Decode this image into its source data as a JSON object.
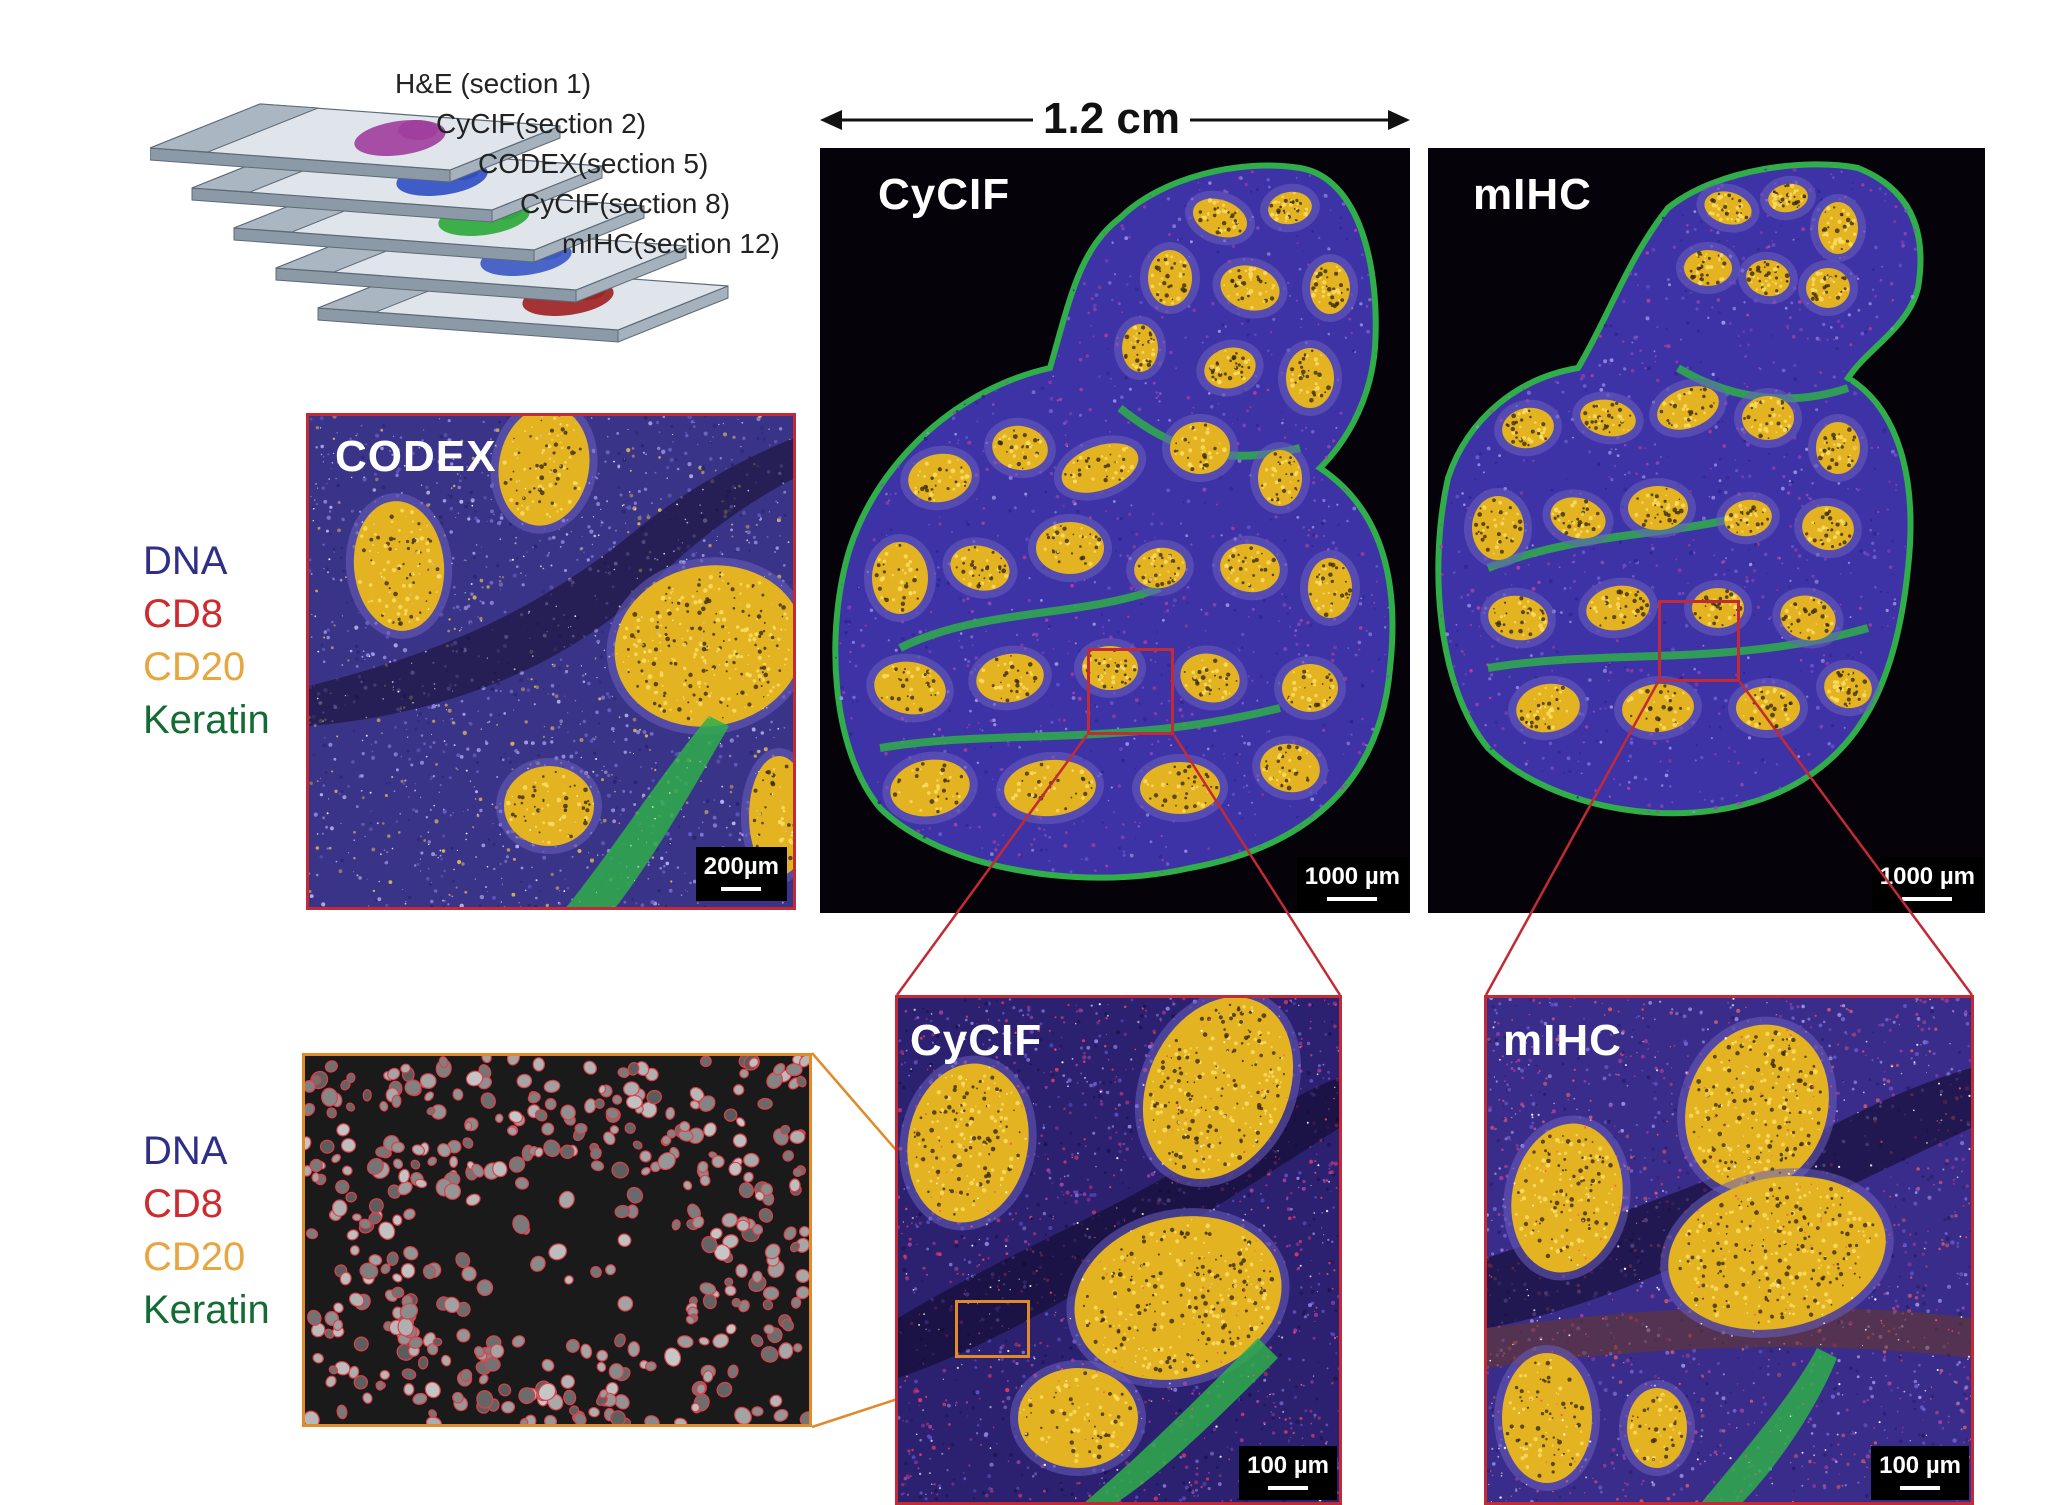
{
  "schematic": {
    "labels": [
      "H&E (section 1)",
      "CyCIF(section 2)",
      "CODEX(section 5)",
      "CyCIF(section 8)",
      "mIHC(section 12)"
    ],
    "tissue_colors": [
      "#a03c9e",
      "#2d4cc4",
      "#2aa83a",
      "#3957c4",
      "#9e1f22"
    ]
  },
  "width_annotation": "1.2 cm",
  "panels": {
    "cycif_whole": {
      "title": "CyCIF",
      "scale": "1000 µm"
    },
    "mihc_whole": {
      "title": "mIHC",
      "scale": "1000 µm"
    },
    "codex": {
      "title": "CODEX",
      "scale": "200µm"
    },
    "cycif_zoom": {
      "title": "CyCIF",
      "scale": "100 µm"
    },
    "mihc_zoom": {
      "title": "mIHC",
      "scale": "100 µm"
    }
  },
  "legend_top": [
    {
      "label": "DNA",
      "color": "#2e2f86"
    },
    {
      "label": "CD8",
      "color": "#cf2a2f"
    },
    {
      "label": "CD20",
      "color": "#e8a640"
    },
    {
      "label": "Keratin",
      "color": "#146b33"
    }
  ],
  "legend_bottom": [
    {
      "label": "DNA",
      "color": "#2e2f86"
    },
    {
      "label": "CD8",
      "color": "#cf2a2f"
    },
    {
      "label": "CD20",
      "color": "#e8a640"
    },
    {
      "label": "Keratin",
      "color": "#146b33"
    }
  ],
  "colors": {
    "zoom_frame": "#c22a35",
    "seg_frame": "#e08a2a",
    "dna": "#4a3fb4",
    "cd20": "#f2c22e",
    "keratin": "#2fae4a"
  }
}
